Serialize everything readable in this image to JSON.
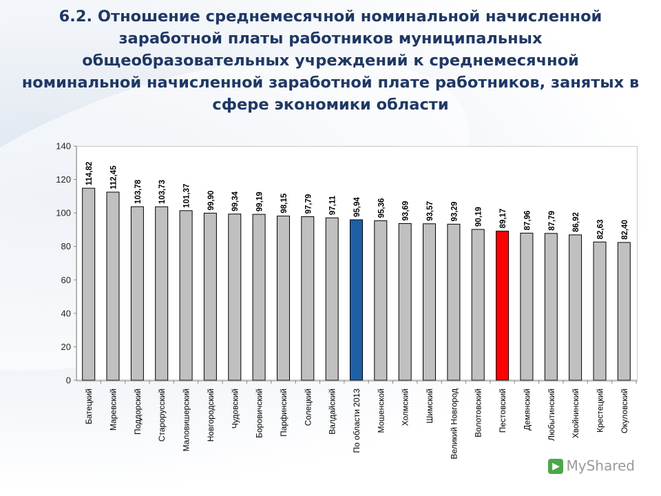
{
  "slide_title": "6.2. Отношение среднемесячной номинальной начисленной заработной платы работников муниципальных общеобразовательных учреждений к среднемесячной номинальной начисленной заработной плате работников, занятых в сфере экономики области",
  "watermark": {
    "text": "MyShared",
    "icon": "myshared-logo-icon"
  },
  "chart_data": {
    "type": "bar",
    "title": "",
    "xlabel": "",
    "ylabel": "",
    "ylim": [
      0,
      140
    ],
    "yticks": [
      "0",
      "20",
      "40",
      "60",
      "80",
      "100",
      "120",
      "140"
    ],
    "grid": false,
    "legend": "none",
    "categories": [
      "Батецкий",
      "Маревский",
      "Поддорский",
      "Старорусский",
      "Маловишерский",
      "Новгородский",
      "Чудовский",
      "Боровичский",
      "Парфинский",
      "Солецкий",
      "Валдайский",
      "По области 2013",
      "Мошенской",
      "Холмский",
      "Шимский",
      "Великий Новгород",
      "Волотовский",
      "Пестовский",
      "Демянский",
      "Любытинский",
      "Хвойнинский",
      "Крестецкий",
      "Окуловский"
    ],
    "values": [
      114.82,
      112.45,
      103.78,
      103.73,
      101.37,
      99.9,
      99.34,
      99.19,
      98.15,
      97.79,
      97.11,
      95.94,
      95.36,
      93.69,
      93.57,
      93.29,
      90.19,
      89.17,
      87.96,
      87.79,
      86.92,
      82.63,
      82.4
    ],
    "value_labels": [
      "114,82",
      "112,45",
      "103,78",
      "103,73",
      "101,37",
      "99,90",
      "99,34",
      "99,19",
      "98,15",
      "97,79",
      "97,11",
      "95,94",
      "95,36",
      "93,69",
      "93,57",
      "93,29",
      "90,19",
      "89,17",
      "87,96",
      "87,79",
      "86,92",
      "82,63",
      "82,40"
    ],
    "colors": {
      "default": "#c0c0c0",
      "region_average": "#1f5fa6",
      "highlight": "#ff0000",
      "stroke": "#000000"
    },
    "highlight_categories": {
      "По области 2013": "region_average",
      "Пестовский": "highlight"
    }
  }
}
